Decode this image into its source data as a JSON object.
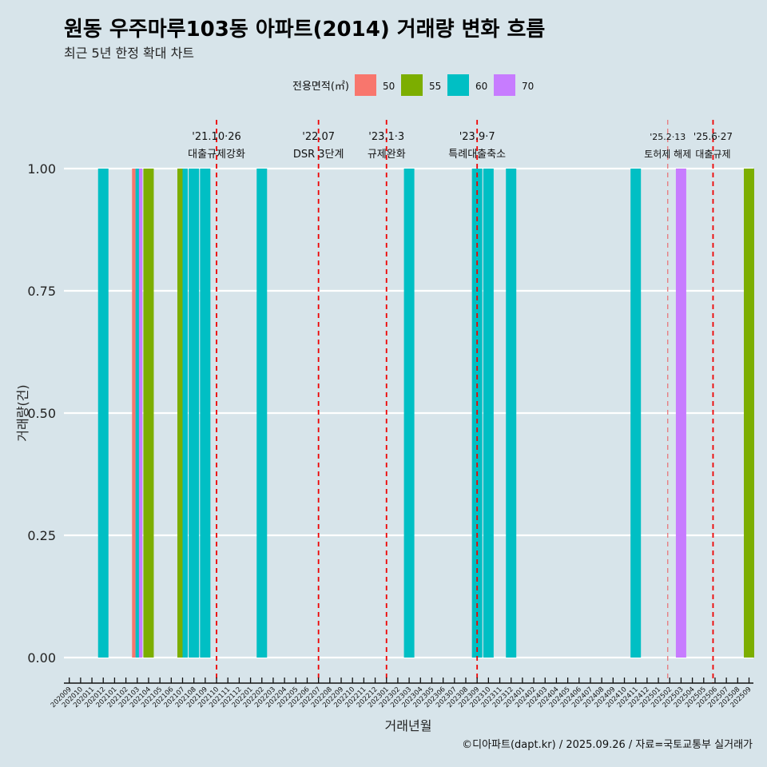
{
  "title": "원동 우주마루103동 아파트(2014) 거래량 변화 흐름",
  "subtitle": "최근 5년 한정 확대 차트",
  "caption": "©디아파트(dapt.kr) / 2025.09.26 / 자료=국토교통부 실거래가",
  "chart_data": {
    "type": "bar",
    "xlabel": "거래년월",
    "ylabel": "거래량(건)",
    "ylim": [
      0,
      1
    ],
    "yticks": [
      "0.00",
      "0.25",
      "0.50",
      "0.75",
      "1.00"
    ],
    "ytick_values": [
      0,
      0.25,
      0.5,
      0.75,
      1
    ],
    "grid": true,
    "legend": {
      "title": "전용면적(㎡)",
      "placement": "top",
      "entries": [
        "50",
        "55",
        "60",
        "70"
      ]
    },
    "colors": {
      "50": "#f8766d",
      "55": "#7cae00",
      "60": "#00bfc4",
      "70": "#c77cff"
    },
    "categories": [
      "202009",
      "202010",
      "202011",
      "202012",
      "202101",
      "202102",
      "202103",
      "202104",
      "202105",
      "202106",
      "202107",
      "202108",
      "202109",
      "202110",
      "202111",
      "202112",
      "202201",
      "202202",
      "202203",
      "202204",
      "202205",
      "202206",
      "202207",
      "202208",
      "202209",
      "202210",
      "202211",
      "202212",
      "202301",
      "202302",
      "202303",
      "202304",
      "202305",
      "202306",
      "202307",
      "202308",
      "202309",
      "202310",
      "202311",
      "202312",
      "202401",
      "202402",
      "202403",
      "202404",
      "202405",
      "202406",
      "202407",
      "202408",
      "202409",
      "202410",
      "202411",
      "202412",
      "202501",
      "202502",
      "202503",
      "202504",
      "202505",
      "202506",
      "202507",
      "202508",
      "202509"
    ],
    "bars": [
      {
        "month": "202012",
        "values": [
          {
            "area": "60",
            "count": 1
          }
        ]
      },
      {
        "month": "202103",
        "values": [
          {
            "area": "50",
            "count": 1
          },
          {
            "area": "60",
            "count": 1
          },
          {
            "area": "70",
            "count": 1
          }
        ]
      },
      {
        "month": "202104",
        "values": [
          {
            "area": "55",
            "count": 1
          }
        ]
      },
      {
        "month": "202107",
        "values": [
          {
            "area": "55",
            "count": 1
          },
          {
            "area": "60",
            "count": 1
          }
        ]
      },
      {
        "month": "202108",
        "values": [
          {
            "area": "60",
            "count": 1
          }
        ]
      },
      {
        "month": "202109",
        "values": [
          {
            "area": "60",
            "count": 1
          }
        ]
      },
      {
        "month": "202202",
        "values": [
          {
            "area": "60",
            "count": 1
          }
        ]
      },
      {
        "month": "202303",
        "values": [
          {
            "area": "60",
            "count": 1
          }
        ]
      },
      {
        "month": "202309",
        "values": [
          {
            "area": "60",
            "count": 1
          }
        ]
      },
      {
        "month": "202310",
        "values": [
          {
            "area": "60",
            "count": 1
          }
        ]
      },
      {
        "month": "202312",
        "values": [
          {
            "area": "60",
            "count": 1
          }
        ]
      },
      {
        "month": "202411",
        "values": [
          {
            "area": "60",
            "count": 1
          }
        ]
      },
      {
        "month": "202503",
        "values": [
          {
            "area": "70",
            "count": 1
          }
        ]
      },
      {
        "month": "202509",
        "values": [
          {
            "area": "55",
            "count": 1
          }
        ]
      }
    ],
    "events": [
      {
        "month": "202110",
        "date": "'21.10·26",
        "label": "대출규제강화"
      },
      {
        "month": "202207",
        "date": "'22.07",
        "label": "DSR 3단계"
      },
      {
        "month": "202301",
        "date": "'23.1·3",
        "label": "규제완화"
      },
      {
        "month": "202309",
        "date": "'23.9·7",
        "label": "특례대출축소"
      },
      {
        "month": "202502",
        "date": "'25.2·13",
        "label": "토허제 해제"
      },
      {
        "month": "202506",
        "date": "'25.6·27",
        "label": "대출규제"
      }
    ]
  }
}
